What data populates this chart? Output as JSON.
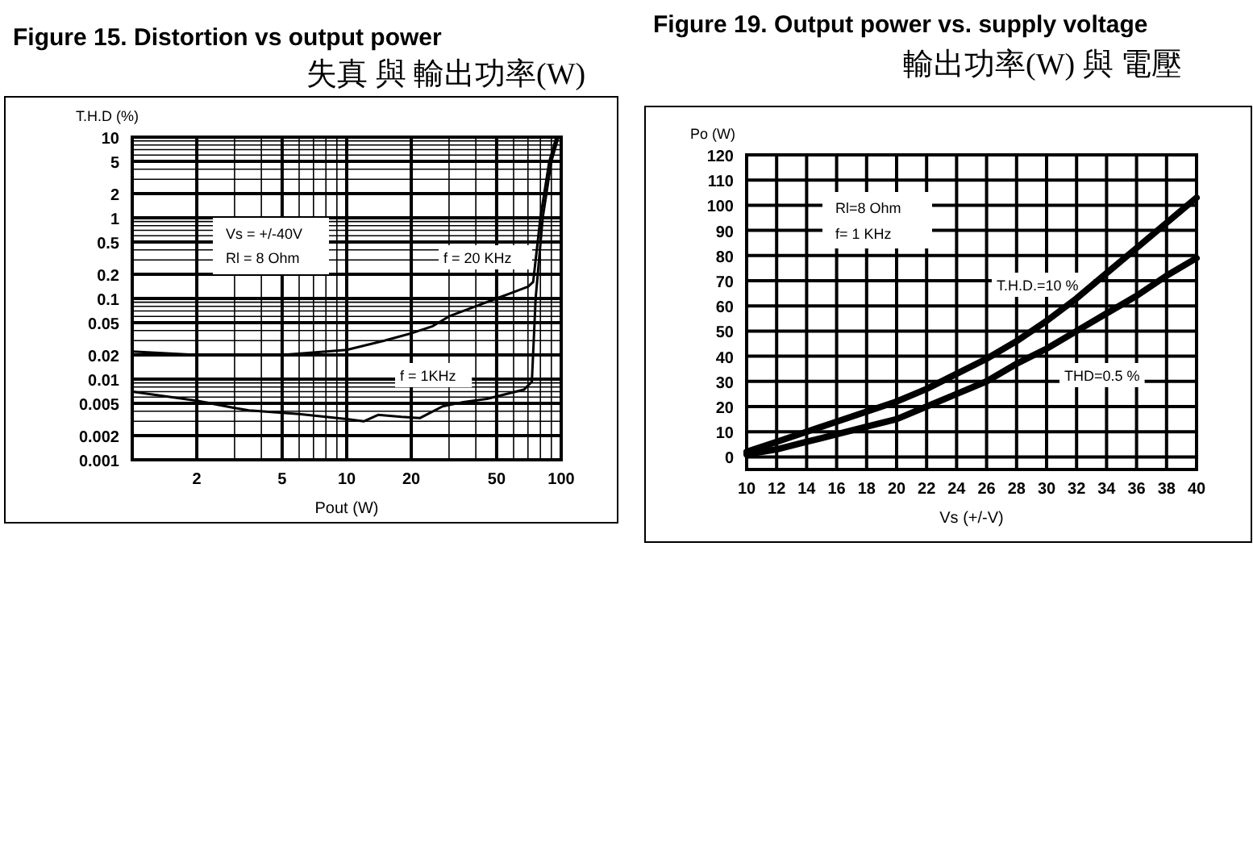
{
  "chart_data": [
    {
      "type": "line",
      "title": "Figure 15.   Distortion vs output power",
      "subtitle": "失真 與  輸出功率(W)",
      "xlabel": "Pout (W)",
      "ylabel": "T.H.D (%)",
      "log": "xy",
      "grid": true,
      "xlim": [
        1,
        100
      ],
      "xticks": [
        {
          "value": 1,
          "label": null
        },
        2,
        {
          "value": 3,
          "label": null
        },
        {
          "value": 4,
          "label": null
        },
        5,
        {
          "value": 6,
          "label": null
        },
        {
          "value": 7,
          "label": null
        },
        {
          "value": 8,
          "label": null
        },
        {
          "value": 9,
          "label": null
        },
        10,
        20,
        {
          "value": 30,
          "label": null
        },
        {
          "value": 40,
          "label": null
        },
        50,
        {
          "value": 60,
          "label": null
        },
        {
          "value": 70,
          "label": null
        },
        {
          "value": 80,
          "label": null
        },
        {
          "value": 90,
          "label": null
        },
        100
      ],
      "ylim": [
        0.001,
        10
      ],
      "yticks": [
        0.001,
        0.002,
        {
          "value": 0.003,
          "label": null
        },
        {
          "value": 0.004,
          "label": null
        },
        0.005,
        {
          "value": 0.006,
          "label": null
        },
        {
          "value": 0.007,
          "label": null
        },
        {
          "value": 0.008,
          "label": null
        },
        {
          "value": 0.009,
          "label": null
        },
        0.01,
        0.02,
        {
          "value": 0.03,
          "label": null
        },
        {
          "value": 0.04,
          "label": null
        },
        0.05,
        {
          "value": 0.06,
          "label": null
        },
        {
          "value": 0.07,
          "label": null
        },
        {
          "value": 0.08,
          "label": null
        },
        {
          "value": 0.09,
          "label": null
        },
        0.1,
        0.2,
        {
          "value": 0.3,
          "label": null
        },
        {
          "value": 0.4,
          "label": null
        },
        0.5,
        {
          "value": 0.6,
          "label": null
        },
        {
          "value": 0.7,
          "label": null
        },
        {
          "value": 0.8,
          "label": null
        },
        {
          "value": 0.9,
          "label": null
        },
        1,
        2,
        {
          "value": 3,
          "label": null
        },
        {
          "value": 4,
          "label": null
        },
        5,
        {
          "value": 6,
          "label": null
        },
        {
          "value": 7,
          "label": null
        },
        {
          "value": 8,
          "label": null
        },
        {
          "value": 9,
          "label": null
        },
        10
      ],
      "annotations": [
        "Vs = +/-40V",
        "Rl = 8 Ohm"
      ],
      "series": [
        {
          "name": "f = 20 KHz",
          "color": "#000000",
          "x": [
            1,
            2,
            3,
            5,
            10,
            15,
            20,
            25,
            30,
            40,
            50,
            60,
            70,
            74,
            80,
            88,
            95
          ],
          "values": [
            0.022,
            0.02,
            0.02,
            0.02,
            0.023,
            0.03,
            0.037,
            0.045,
            0.06,
            0.08,
            0.1,
            0.12,
            0.14,
            0.16,
            1,
            5,
            10
          ]
        },
        {
          "name": "f = 1KHz",
          "color": "#000000",
          "x": [
            1,
            2,
            3,
            3.5,
            6,
            10,
            12,
            14,
            18,
            22,
            28,
            35,
            45,
            67,
            73,
            76,
            82,
            90,
            97
          ],
          "values": [
            0.007,
            0.0054,
            0.0044,
            0.0041,
            0.0037,
            0.0032,
            0.003,
            0.0036,
            0.0034,
            0.0033,
            0.0046,
            0.0052,
            0.0057,
            0.0074,
            0.0093,
            0.1,
            1,
            5,
            10
          ]
        }
      ]
    },
    {
      "type": "line",
      "title": "Figure 19.   Output power vs. supply voltage",
      "subtitle": "輸出功率(W)   與   電壓",
      "xlabel": "Vs (+/-V)",
      "ylabel": "Po (W)",
      "grid": true,
      "xlim": [
        10,
        40
      ],
      "xticks": [
        10,
        12,
        14,
        16,
        18,
        20,
        22,
        24,
        26,
        28,
        30,
        32,
        34,
        36,
        38,
        40
      ],
      "ylim": [
        -5,
        120
      ],
      "yticks": [
        0,
        10,
        20,
        30,
        40,
        50,
        60,
        70,
        80,
        90,
        100,
        110,
        120
      ],
      "annotations": [
        "Rl=8 Ohm",
        "f= 1 KHz"
      ],
      "series": [
        {
          "name": "T.H.D.=10 %",
          "color": "#000000",
          "x": [
            10,
            12,
            14,
            16,
            18,
            20,
            22,
            24,
            26,
            28,
            30,
            32,
            34,
            36,
            38,
            40
          ],
          "values": [
            2,
            6,
            10,
            14,
            18,
            22,
            27,
            33,
            39,
            46,
            54,
            63,
            73,
            83,
            93,
            103
          ]
        },
        {
          "name": "THD=0.5 %",
          "color": "#000000",
          "x": [
            10,
            12,
            14,
            16,
            18,
            20,
            22,
            24,
            26,
            28,
            30,
            32,
            34,
            36,
            38,
            40
          ],
          "values": [
            1,
            3,
            6,
            9,
            12,
            15,
            20,
            25,
            30,
            37,
            43,
            50,
            57,
            64,
            72,
            79
          ]
        }
      ]
    }
  ]
}
